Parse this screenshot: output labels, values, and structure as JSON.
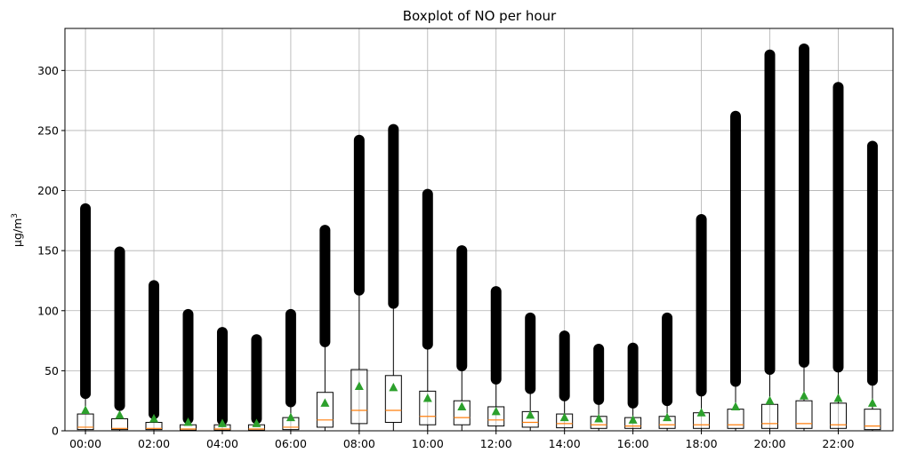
{
  "chart_data": {
    "type": "boxplot",
    "title": "Boxplot of NO per hour",
    "ylabel": "µg/m",
    "ylabel_superscript": "3",
    "xlabel": "",
    "ylim": [
      0,
      335
    ],
    "yticks": [
      0,
      50,
      100,
      150,
      200,
      250,
      300
    ],
    "xtick_labels": [
      "00:00",
      "02:00",
      "04:00",
      "06:00",
      "08:00",
      "10:00",
      "12:00",
      "14:00",
      "16:00",
      "18:00",
      "20:00",
      "22:00"
    ],
    "xtick_hours": [
      0,
      2,
      4,
      6,
      8,
      10,
      12,
      14,
      16,
      18,
      20,
      22
    ],
    "grid": true,
    "colors": {
      "box": "#000000",
      "median": "#ff7f0e",
      "mean": "#2ca02c",
      "flier": "#000000",
      "grid": "#b0b0b0"
    },
    "boxes": [
      {
        "hour": "00:00",
        "whisker_low": 0,
        "q1": 1,
        "median": 3,
        "q3": 14,
        "whisker_high": 31,
        "mean": 17,
        "flier_min": 31,
        "flier_max": 185
      },
      {
        "hour": "01:00",
        "whisker_low": 0,
        "q1": 1,
        "median": 2,
        "q3": 10,
        "whisker_high": 21,
        "mean": 13,
        "flier_min": 21,
        "flier_max": 149
      },
      {
        "hour": "02:00",
        "whisker_low": 0,
        "q1": 1,
        "median": 2,
        "q3": 7,
        "whisker_high": 14,
        "mean": 10,
        "flier_min": 14,
        "flier_max": 121
      },
      {
        "hour": "03:00",
        "whisker_low": 0,
        "q1": 0.5,
        "median": 1.5,
        "q3": 5,
        "whisker_high": 10,
        "mean": 7,
        "flier_min": 10,
        "flier_max": 97
      },
      {
        "hour": "04:00",
        "whisker_low": 0,
        "q1": 0.5,
        "median": 1.5,
        "q3": 5,
        "whisker_high": 9,
        "mean": 6,
        "flier_min": 9,
        "flier_max": 82
      },
      {
        "hour": "05:00",
        "whisker_low": 0,
        "q1": 0.5,
        "median": 1.5,
        "q3": 5,
        "whisker_high": 10,
        "mean": 6,
        "flier_min": 10,
        "flier_max": 76
      },
      {
        "hour": "06:00",
        "whisker_low": 0,
        "q1": 1,
        "median": 3,
        "q3": 11,
        "whisker_high": 24,
        "mean": 11,
        "flier_min": 24,
        "flier_max": 97
      },
      {
        "hour": "07:00",
        "whisker_low": 0,
        "q1": 3,
        "median": 9,
        "q3": 32,
        "whisker_high": 74,
        "mean": 23,
        "flier_min": 74,
        "flier_max": 167
      },
      {
        "hour": "08:00",
        "whisker_low": 0,
        "q1": 6,
        "median": 17,
        "q3": 51,
        "whisker_high": 117,
        "mean": 37,
        "flier_min": 117,
        "flier_max": 242
      },
      {
        "hour": "09:00",
        "whisker_low": 0,
        "q1": 7,
        "median": 17,
        "q3": 46,
        "whisker_high": 106,
        "mean": 36,
        "flier_min": 106,
        "flier_max": 251
      },
      {
        "hour": "10:00",
        "whisker_low": 0,
        "q1": 5,
        "median": 12,
        "q3": 33,
        "whisker_high": 72,
        "mean": 27,
        "flier_min": 72,
        "flier_max": 197
      },
      {
        "hour": "11:00",
        "whisker_low": 0,
        "q1": 5,
        "median": 11,
        "q3": 25,
        "whisker_high": 54,
        "mean": 20,
        "flier_min": 54,
        "flier_max": 150
      },
      {
        "hour": "12:00",
        "whisker_low": 0,
        "q1": 4,
        "median": 9,
        "q3": 20,
        "whisker_high": 43,
        "mean": 16,
        "flier_min": 43,
        "flier_max": 116
      },
      {
        "hour": "13:00",
        "whisker_low": 0,
        "q1": 3,
        "median": 7,
        "q3": 16,
        "whisker_high": 35,
        "mean": 13,
        "flier_min": 35,
        "flier_max": 94
      },
      {
        "hour": "14:00",
        "whisker_low": 0,
        "q1": 2.5,
        "median": 6,
        "q3": 14,
        "whisker_high": 29,
        "mean": 11,
        "flier_min": 29,
        "flier_max": 79
      },
      {
        "hour": "15:00",
        "whisker_low": 0,
        "q1": 2,
        "median": 5,
        "q3": 12,
        "whisker_high": 26,
        "mean": 10,
        "flier_min": 26,
        "flier_max": 68
      },
      {
        "hour": "16:00",
        "whisker_low": 0,
        "q1": 2,
        "median": 4,
        "q3": 11,
        "whisker_high": 23,
        "mean": 9,
        "flier_min": 23,
        "flier_max": 69
      },
      {
        "hour": "17:00",
        "whisker_low": 0,
        "q1": 2,
        "median": 5,
        "q3": 12,
        "whisker_high": 25,
        "mean": 11,
        "flier_min": 25,
        "flier_max": 94
      },
      {
        "hour": "18:00",
        "whisker_low": 0,
        "q1": 2,
        "median": 5,
        "q3": 15,
        "whisker_high": 33,
        "mean": 15,
        "flier_min": 33,
        "flier_max": 176
      },
      {
        "hour": "19:00",
        "whisker_low": 0,
        "q1": 2,
        "median": 5,
        "q3": 18,
        "whisker_high": 41,
        "mean": 20,
        "flier_min": 41,
        "flier_max": 262
      },
      {
        "hour": "20:00",
        "whisker_low": 0,
        "q1": 2,
        "median": 6,
        "q3": 22,
        "whisker_high": 51,
        "mean": 25,
        "flier_min": 51,
        "flier_max": 313
      },
      {
        "hour": "21:00",
        "whisker_low": 0,
        "q1": 2,
        "median": 6,
        "q3": 25,
        "whisker_high": 57,
        "mean": 29,
        "flier_min": 57,
        "flier_max": 318
      },
      {
        "hour": "22:00",
        "whisker_low": 0,
        "q1": 2,
        "median": 5,
        "q3": 23,
        "whisker_high": 53,
        "mean": 27,
        "flier_min": 53,
        "flier_max": 286
      },
      {
        "hour": "23:00",
        "whisker_low": 0,
        "q1": 1,
        "median": 4,
        "q3": 18,
        "whisker_high": 42,
        "mean": 23,
        "flier_min": 42,
        "flier_max": 237
      }
    ]
  }
}
